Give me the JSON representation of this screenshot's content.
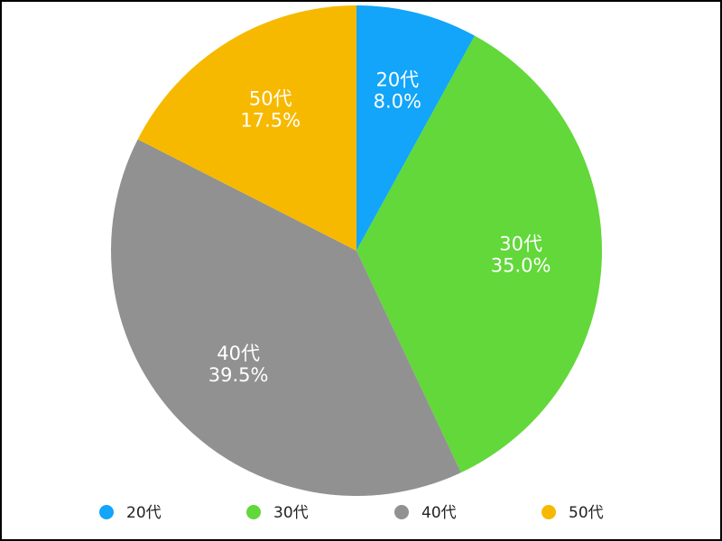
{
  "chart_data": {
    "type": "pie",
    "categories": [
      "20代",
      "30代",
      "40代",
      "50代"
    ],
    "values": [
      8,
      35,
      39.5,
      17.5
    ],
    "value_labels": [
      "8.0%",
      "35.0%",
      "39.5%",
      "17.5%"
    ],
    "colors": [
      "#12a5f9",
      "#62d83a",
      "#919191",
      "#f7b900"
    ],
    "legend": "bottom"
  }
}
